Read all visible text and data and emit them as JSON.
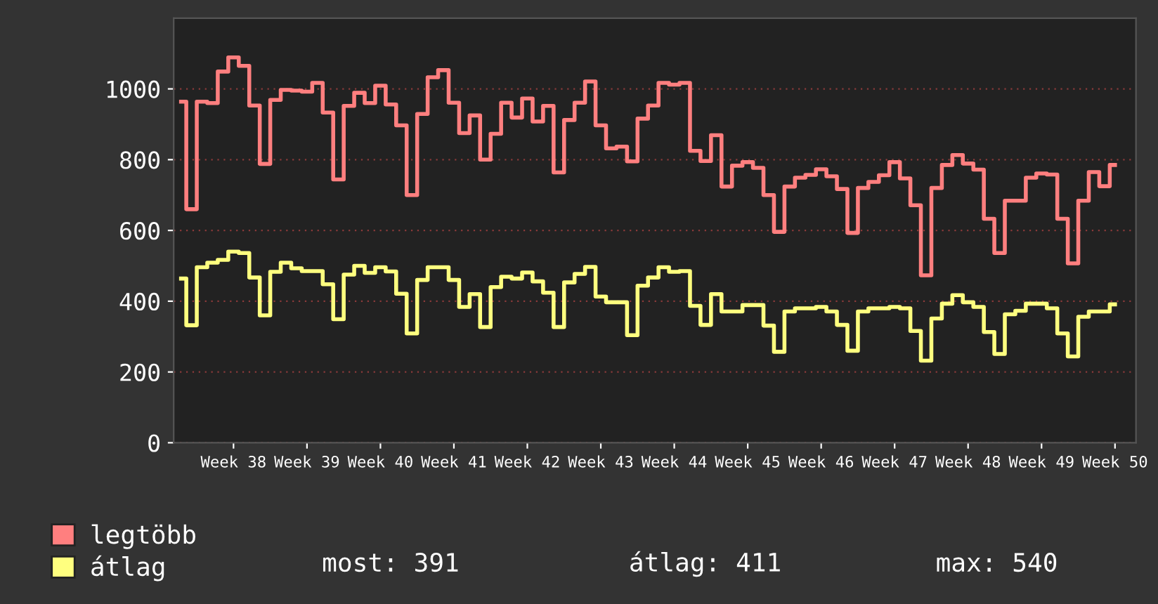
{
  "chart_data": {
    "type": "step",
    "categories": [
      null,
      null,
      null,
      null,
      null,
      "Week 38",
      null,
      null,
      null,
      null,
      null,
      null,
      "Week 39",
      null,
      null,
      null,
      null,
      null,
      null,
      "Week 40",
      null,
      null,
      null,
      null,
      null,
      null,
      "Week 41",
      null,
      null,
      null,
      null,
      null,
      null,
      "Week 42",
      null,
      null,
      null,
      null,
      null,
      null,
      "Week 43",
      null,
      null,
      null,
      null,
      null,
      null,
      "Week 44",
      null,
      null,
      null,
      null,
      null,
      null,
      "Week 45",
      null,
      null,
      null,
      null,
      null,
      null,
      "Week 46",
      null,
      null,
      null,
      null,
      null,
      null,
      "Week 47",
      null,
      null,
      null,
      null,
      null,
      null,
      "Week 48",
      null,
      null,
      null,
      null,
      null,
      null,
      "Week 49",
      null,
      null,
      null,
      null,
      null,
      null,
      "Week 50"
    ],
    "series": [
      {
        "name": "legtöbb",
        "color": "#ff7f7f",
        "values": [
          964,
          660,
          964,
          960,
          1049,
          1089,
          1065,
          953,
          788,
          969,
          997,
          995,
          992,
          1017,
          933,
          744,
          952,
          989,
          960,
          1009,
          956,
          897,
          700,
          929,
          1033,
          1053,
          961,
          875,
          925,
          800,
          873,
          961,
          919,
          973,
          908,
          952,
          764,
          912,
          961,
          1021,
          897,
          832,
          837,
          795,
          916,
          953,
          1017,
          1012,
          1017,
          825,
          796,
          869,
          724,
          783,
          793,
          777,
          700,
          596,
          724,
          749,
          757,
          773,
          753,
          717,
          593,
          720,
          737,
          756,
          793,
          747,
          671,
          473,
          720,
          785,
          813,
          789,
          772,
          633,
          536,
          684,
          684,
          749,
          761,
          758,
          633,
          507,
          684,
          765,
          725,
          785
        ]
      },
      {
        "name": "átlag",
        "color": "#ffff7f",
        "values": [
          464,
          332,
          496,
          509,
          517,
          540,
          536,
          467,
          360,
          483,
          509,
          493,
          485,
          485,
          448,
          349,
          475,
          500,
          480,
          496,
          484,
          421,
          309,
          460,
          496,
          496,
          460,
          384,
          420,
          327,
          440,
          469,
          464,
          481,
          456,
          424,
          327,
          453,
          477,
          497,
          413,
          397,
          397,
          304,
          444,
          467,
          496,
          483,
          485,
          387,
          333,
          420,
          371,
          371,
          389,
          389,
          331,
          257,
          371,
          380,
          380,
          384,
          371,
          333,
          260,
          371,
          380,
          380,
          384,
          380,
          316,
          232,
          351,
          393,
          417,
          397,
          384,
          313,
          251,
          363,
          373,
          393,
          393,
          380,
          309,
          244,
          356,
          371,
          371,
          391
        ]
      }
    ],
    "ylim": [
      0,
      1200
    ],
    "yticks": [
      0,
      200,
      400,
      600,
      800,
      1000
    ],
    "grid": "y",
    "legend": "bottom left",
    "annotations": [
      "most: 391",
      "átlag: 411",
      "max: 540"
    ]
  }
}
